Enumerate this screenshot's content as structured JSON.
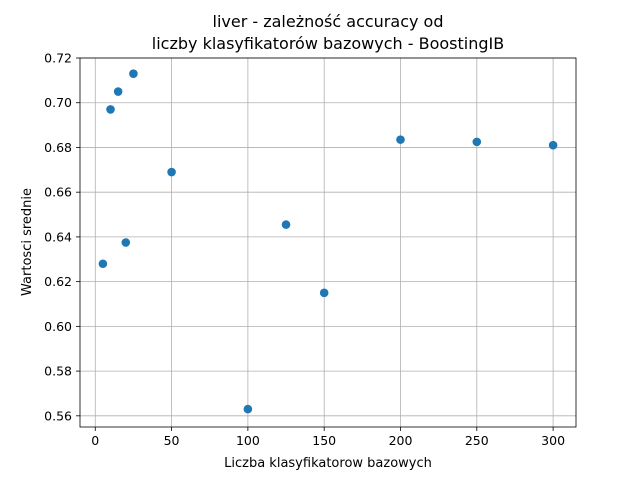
{
  "chart_data": {
    "type": "scatter",
    "title_line1": "liver - zależność accuracy od",
    "title_line2": "liczby klasyfikatorów bazowych - BoostingIB",
    "xlabel": "Liczba klasyfikatorow bazowych",
    "ylabel": "Wartosci srednie",
    "xlim": [
      -10,
      315
    ],
    "ylim": [
      0.555,
      0.72
    ],
    "grid": true,
    "x_ticks": [
      0,
      50,
      100,
      150,
      200,
      250,
      300
    ],
    "x_tick_labels": [
      "0",
      "50",
      "100",
      "150",
      "200",
      "250",
      "300"
    ],
    "y_ticks": [
      0.56,
      0.58,
      0.6,
      0.62,
      0.64,
      0.66,
      0.68,
      0.7,
      0.72
    ],
    "y_tick_labels": [
      "0.56",
      "0.58",
      "0.60",
      "0.62",
      "0.64",
      "0.66",
      "0.68",
      "0.70",
      "0.72"
    ],
    "marker_color": "#1f77b4",
    "points": [
      {
        "x": 5,
        "y": 0.628
      },
      {
        "x": 10,
        "y": 0.697
      },
      {
        "x": 15,
        "y": 0.705
      },
      {
        "x": 20,
        "y": 0.6375
      },
      {
        "x": 25,
        "y": 0.713
      },
      {
        "x": 50,
        "y": 0.669
      },
      {
        "x": 100,
        "y": 0.563
      },
      {
        "x": 125,
        "y": 0.6455
      },
      {
        "x": 150,
        "y": 0.615
      },
      {
        "x": 200,
        "y": 0.6835
      },
      {
        "x": 250,
        "y": 0.6825
      },
      {
        "x": 300,
        "y": 0.681
      }
    ]
  }
}
